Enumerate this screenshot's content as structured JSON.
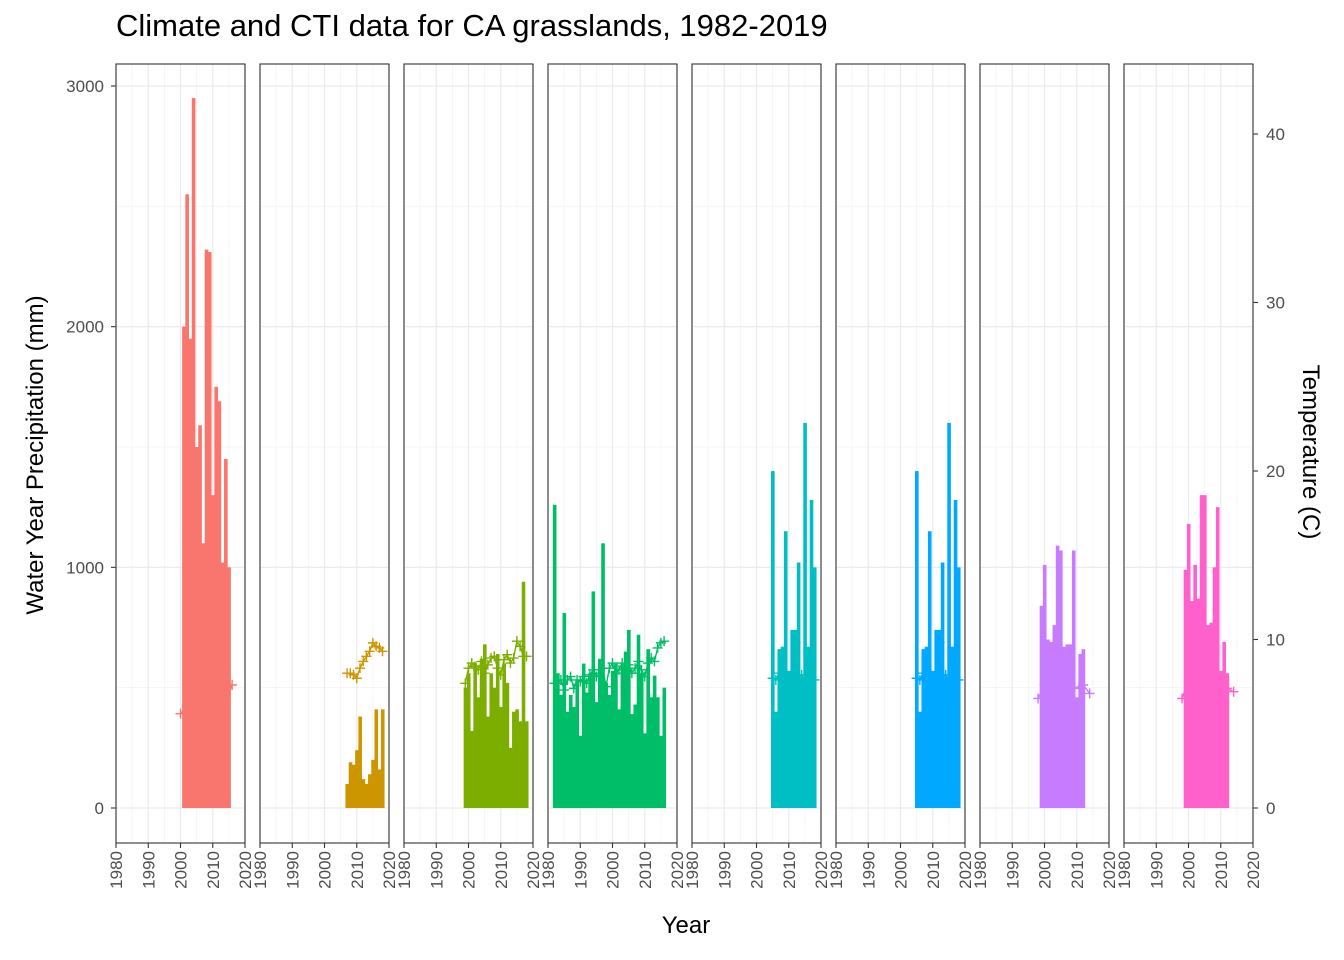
{
  "chart_data": {
    "type": "bar",
    "title": "Climate and CTI data for CA grasslands, 1982-2019",
    "xlabel": "Year",
    "ylabel": "Water Year Precipitation (mm)",
    "y2label": "Temperature (C)",
    "xlim": [
      1980,
      2020
    ],
    "x_ticks": [
      1980,
      1990,
      2000,
      2010,
      2020
    ],
    "ylim": [
      -140,
      3100
    ],
    "y_ticks": [
      0,
      1000,
      2000,
      3000
    ],
    "y2lim": [
      -1.7,
      44
    ],
    "y2_ticks": [
      0,
      10,
      20,
      30,
      40
    ],
    "grid": true,
    "legend": "none",
    "panels": [
      {
        "color": "#F8766D",
        "precip": {
          "x": [
            2001,
            2002,
            2003,
            2004,
            2005,
            2006,
            2007,
            2008,
            2009,
            2010,
            2011,
            2012,
            2013,
            2014,
            2015
          ],
          "values": [
            2000,
            2550,
            1950,
            2950,
            1500,
            1590,
            1100,
            2320,
            2310,
            1300,
            1750,
            1690,
            1020,
            1450,
            1000
          ]
        },
        "temp": {
          "x": [
            2000,
            2002,
            2005,
            2008,
            2011,
            2014,
            2016
          ],
          "values": [
            5.6,
            6.0,
            7.5,
            6.3,
            6.8,
            6.5,
            7.3
          ]
        }
      },
      {
        "color": "#CD9600",
        "precip": {
          "x": [
            2007,
            2008,
            2009,
            2010,
            2011,
            2012,
            2013,
            2014,
            2015,
            2016,
            2017,
            2018
          ],
          "values": [
            100,
            190,
            180,
            240,
            380,
            120,
            100,
            140,
            200,
            410,
            160,
            410
          ]
        },
        "temp": {
          "x": [
            2007,
            2008,
            2009,
            2010,
            2011,
            2012,
            2013,
            2014,
            2015,
            2016,
            2017,
            2018
          ],
          "values": [
            8.0,
            8.0,
            7.9,
            7.7,
            8.3,
            8.7,
            9.0,
            9.3,
            9.8,
            9.6,
            9.5,
            9.3
          ]
        }
      },
      {
        "color": "#7CAE00",
        "precip": {
          "x": [
            1999,
            2000,
            2001,
            2002,
            2003,
            2004,
            2005,
            2006,
            2007,
            2008,
            2009,
            2010,
            2011,
            2012,
            2013,
            2014,
            2015,
            2016,
            2017,
            2018
          ],
          "values": [
            500,
            560,
            320,
            600,
            460,
            620,
            680,
            380,
            560,
            500,
            640,
            420,
            600,
            520,
            250,
            400,
            410,
            360,
            940,
            360
          ]
        },
        "temp": {
          "x": [
            1999,
            2000,
            2001,
            2002,
            2003,
            2004,
            2005,
            2006,
            2007,
            2008,
            2009,
            2010,
            2011,
            2012,
            2013,
            2014,
            2015,
            2016,
            2017,
            2018
          ],
          "values": [
            7.4,
            8.3,
            8.6,
            8.4,
            8.2,
            8.7,
            8.0,
            8.5,
            8.9,
            9.0,
            8.3,
            7.9,
            8.8,
            9.1,
            8.6,
            8.9,
            9.9,
            9.6,
            9.0,
            9.0
          ]
        }
      },
      {
        "color": "#00BE67",
        "precip": {
          "x": [
            1982,
            1983,
            1984,
            1985,
            1986,
            1987,
            1988,
            1989,
            1990,
            1991,
            1992,
            1993,
            1994,
            1995,
            1996,
            1997,
            1998,
            1999,
            2000,
            2001,
            2002,
            2003,
            2004,
            2005,
            2006,
            2007,
            2008,
            2009,
            2010,
            2011,
            2012,
            2013,
            2014,
            2015,
            2016
          ],
          "values": [
            1260,
            560,
            470,
            810,
            400,
            470,
            420,
            530,
            300,
            600,
            480,
            560,
            900,
            440,
            620,
            1100,
            520,
            470,
            570,
            600,
            410,
            600,
            650,
            740,
            390,
            430,
            720,
            560,
            310,
            660,
            460,
            550,
            460,
            300,
            500
          ]
        },
        "temp": {
          "x": [
            1982,
            1983,
            1984,
            1985,
            1986,
            1987,
            1988,
            1989,
            1990,
            1991,
            1992,
            1993,
            1994,
            1995,
            1996,
            1997,
            1998,
            1999,
            2000,
            2001,
            2002,
            2003,
            2004,
            2005,
            2006,
            2007,
            2008,
            2009,
            2010,
            2011,
            2012,
            2013,
            2014,
            2015,
            2016
          ],
          "values": [
            7.4,
            7.4,
            7.6,
            7.0,
            7.6,
            7.8,
            7.1,
            7.6,
            7.5,
            7.8,
            7.4,
            7.9,
            8.2,
            7.8,
            8.0,
            8.3,
            7.2,
            8.3,
            8.6,
            8.0,
            8.2,
            8.6,
            8.4,
            8.5,
            8.0,
            8.3,
            8.7,
            8.2,
            7.8,
            8.6,
            8.9,
            8.7,
            9.5,
            9.8,
            9.9
          ]
        }
      },
      {
        "color": "#00BFC4",
        "precip": {
          "x": [
            2005,
            2006,
            2007,
            2008,
            2009,
            2010,
            2011,
            2012,
            2013,
            2014,
            2015,
            2016,
            2017,
            2018
          ],
          "values": [
            1400,
            400,
            660,
            670,
            1150,
            570,
            740,
            740,
            1020,
            540,
            1600,
            670,
            1280,
            1000
          ]
        },
        "temp": {
          "x": [
            2005,
            2006,
            2007,
            2008,
            2009,
            2010,
            2011,
            2012,
            2013,
            2014,
            2015,
            2016,
            2017,
            2018
          ],
          "values": [
            7.7,
            7.6,
            8.0,
            7.9,
            7.4,
            7.8,
            7.5,
            7.7,
            7.6,
            7.9,
            7.5,
            7.9,
            8.0,
            7.6
          ]
        }
      },
      {
        "color": "#00A9FF",
        "precip": {
          "x": [
            2005,
            2006,
            2007,
            2008,
            2009,
            2010,
            2011,
            2012,
            2013,
            2014,
            2015,
            2016,
            2017,
            2018
          ],
          "values": [
            1400,
            400,
            660,
            670,
            1150,
            570,
            740,
            740,
            1020,
            540,
            1600,
            670,
            1280,
            1000
          ]
        },
        "temp": {
          "x": [
            2005,
            2006,
            2007,
            2008,
            2009,
            2010,
            2011,
            2012,
            2013,
            2014,
            2015,
            2016,
            2017,
            2018
          ],
          "values": [
            7.7,
            7.6,
            8.0,
            7.9,
            7.4,
            7.8,
            7.5,
            7.7,
            7.6,
            7.9,
            7.5,
            7.9,
            8.0,
            7.6
          ]
        }
      },
      {
        "color": "#C77CFF",
        "precip": {
          "x": [
            1999,
            2000,
            2001,
            2002,
            2003,
            2004,
            2005,
            2006,
            2007,
            2008,
            2009,
            2010,
            2011,
            2012,
            2013
          ],
          "values": [
            840,
            1010,
            700,
            690,
            760,
            1090,
            1070,
            670,
            680,
            680,
            1070,
            460,
            640,
            660,
            0
          ]
        },
        "temp": {
          "x": [
            1998,
            2000,
            2003,
            2006,
            2009,
            2012,
            2014
          ],
          "values": [
            6.5,
            7.3,
            6.9,
            7.5,
            7.1,
            7.3,
            6.8
          ]
        }
      },
      {
        "color": "#FF61CC",
        "precip": {
          "x": [
            1999,
            2000,
            2001,
            2002,
            2003,
            2004,
            2005,
            2006,
            2007,
            2008,
            2009,
            2010,
            2011,
            2012,
            2013
          ],
          "values": [
            990,
            1180,
            860,
            1010,
            870,
            1300,
            1300,
            760,
            770,
            1000,
            1250,
            570,
            690,
            560,
            0
          ]
        },
        "temp": {
          "x": [
            1998,
            2000,
            2003,
            2006,
            2009,
            2012,
            2014
          ],
          "values": [
            6.5,
            7.6,
            7.2,
            7.4,
            7.3,
            7.1,
            6.9
          ]
        }
      }
    ]
  }
}
